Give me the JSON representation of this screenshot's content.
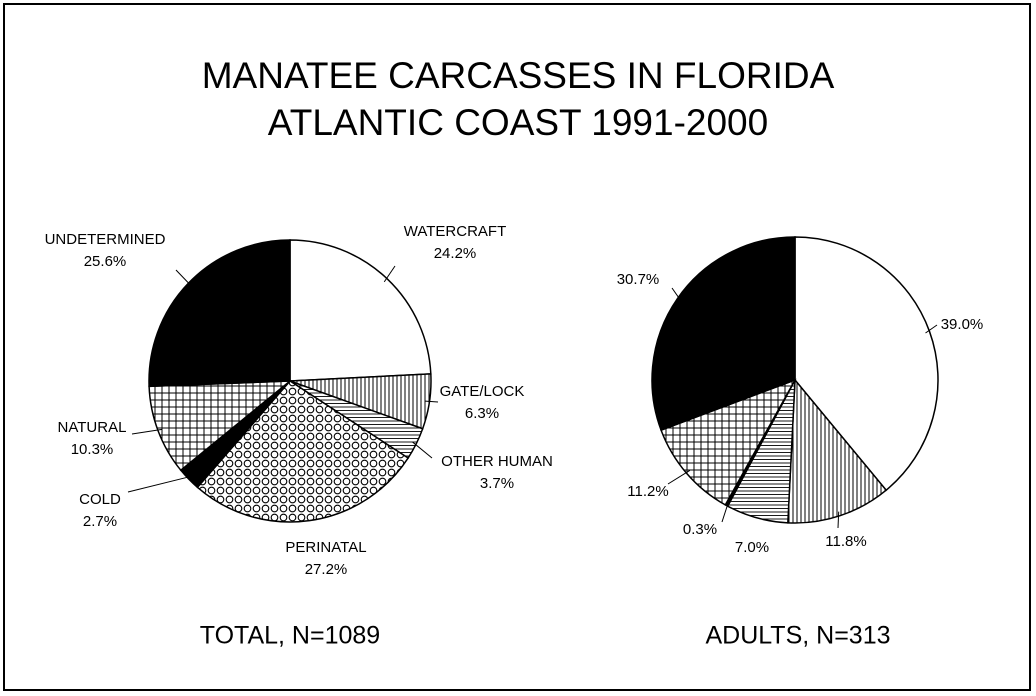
{
  "title": "MANATEE CARCASSES IN FLORIDA",
  "subtitle": "ATLANTIC COAST 1991-2000",
  "chart_data": [
    {
      "type": "pie",
      "caption": "TOTAL, N=1089",
      "categories": [
        "WATERCRAFT",
        "GATE/LOCK",
        "OTHER HUMAN",
        "PERINATAL",
        "COLD",
        "NATURAL",
        "UNDETERMINED"
      ],
      "values": [
        24.2,
        6.3,
        3.7,
        27.2,
        2.7,
        10.3,
        25.6
      ],
      "value_labels": [
        "24.2%",
        "6.3%",
        "3.7%",
        "27.2%",
        "2.7%",
        "10.3%",
        "25.6%"
      ],
      "patterns": [
        "white",
        "vertical",
        "horizontal",
        "circles",
        "black",
        "grid",
        "black"
      ]
    },
    {
      "type": "pie",
      "caption": "ADULTS, N=313",
      "values": [
        39.0,
        11.8,
        7.0,
        0.3,
        11.2,
        30.7
      ],
      "value_labels": [
        "39.0%",
        "11.8%",
        "7.0%",
        "0.3%",
        "11.2%",
        "30.7%"
      ],
      "patterns": [
        "white",
        "vertical",
        "horizontal",
        "black",
        "grid",
        "black"
      ]
    }
  ]
}
